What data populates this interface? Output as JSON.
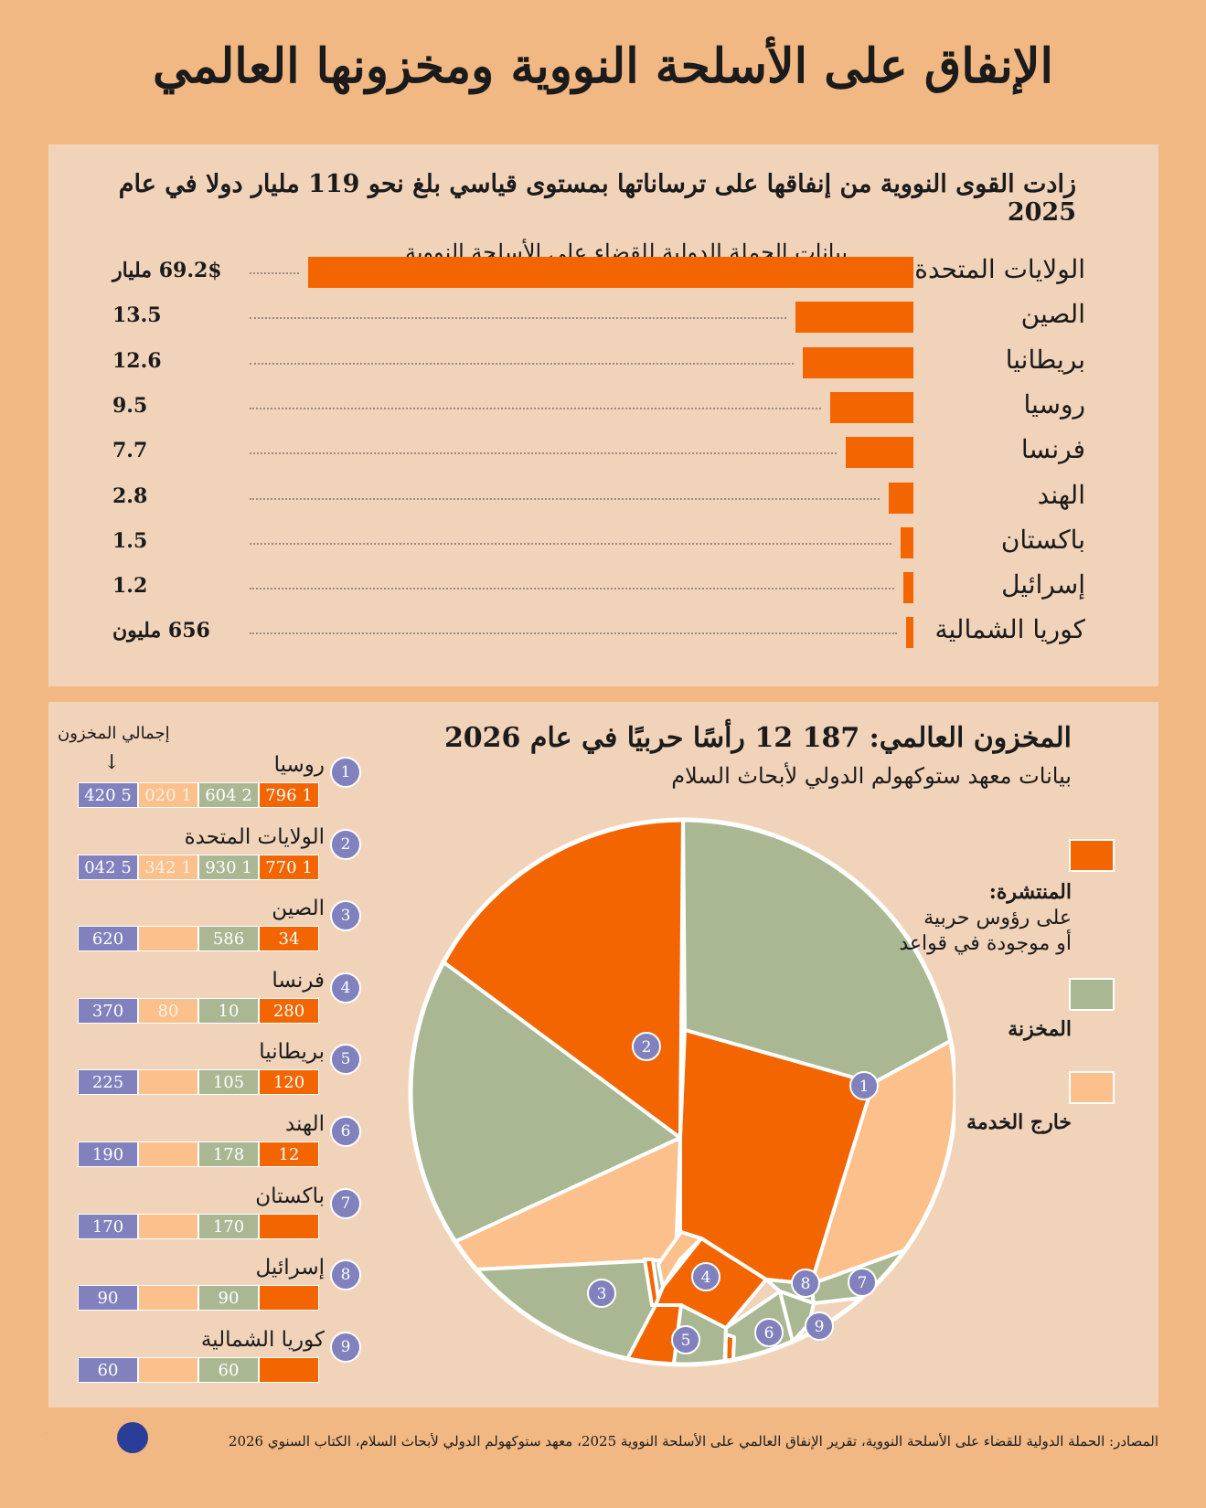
{
  "title": "الإنفاق على الأسلحة النووية ومخزونها العالمي",
  "colors": {
    "background": "#f2b883",
    "panel": "#f1d3ba",
    "deployed": "#f26500",
    "stored": "#a9b893",
    "retired": "#fcc08d",
    "total": "#8181be"
  },
  "spending": {
    "title": "زادت القوى النووية من إنفاقها على ترساناتها بمستوى قياسي بلغ نحو 119 مليار دولا في عام 2025",
    "subtitle": "بيانات الحملة الدولية للقضاء على الأسلحة النووية"
  },
  "stockpile": {
    "title": "المخزون العالمي: 187 12 رأسًا حربيًا في عام 2026",
    "subtitle": "بيانات معهد ستوكهولم الدولي لأبحاث السلام",
    "total_header": "إجمالي المخزون",
    "legend": {
      "deployed_title": "المنتشرة:",
      "deployed_line1": "على رؤوس حربية",
      "deployed_line2": "أو موجودة في قواعد",
      "stored": "المخزنة",
      "retired": "خارج الخدمة"
    }
  },
  "chart_data": [
    {
      "type": "bar",
      "orientation": "horizontal",
      "title": "زادت القوى النووية من إنفاقها على ترساناتها بمستوى قياسي بلغ نحو 119 مليار دولا في عام 2025",
      "subtitle": "بيانات الحملة الدولية للقضاء على الأسلحة النووية",
      "categories": [
        "الولايات المتحدة",
        "الصين",
        "بريطانيا",
        "روسيا",
        "فرنسا",
        "الهند",
        "باكستان",
        "إسرائيل",
        "كوريا الشمالية"
      ],
      "values": [
        69.2,
        13.5,
        12.6,
        9.5,
        7.7,
        2.8,
        1.5,
        1.2,
        0.656
      ],
      "value_labels": [
        "69.2$ مليار",
        "13.5",
        "12.6",
        "9.5",
        "7.7",
        "2.8",
        "1.5",
        "1.2",
        "656 مليون"
      ]
    },
    {
      "type": "table",
      "title": "المخزون العالمي: 187 12 رأسًا حربيًا في عام 2026",
      "subtitle": "بيانات معهد ستوكهولم الدولي لأبحاث السلام",
      "columns": [
        "total",
        "retired",
        "stored",
        "deployed"
      ],
      "rows": [
        {
          "rank": "1",
          "country": "روسيا",
          "total": "5 420",
          "retired": "1 020",
          "stored": "2 604",
          "deployed": "1 796"
        },
        {
          "rank": "2",
          "country": "الولايات المتحدة",
          "total": "5 042",
          "retired": "1 342",
          "stored": "1 930",
          "deployed": "1 770"
        },
        {
          "rank": "3",
          "country": "الصين",
          "total": "620",
          "retired": "",
          "stored": "586",
          "deployed": "34"
        },
        {
          "rank": "4",
          "country": "فرنسا",
          "total": "370",
          "retired": "80",
          "stored": "10",
          "deployed": "280"
        },
        {
          "rank": "5",
          "country": "بريطانيا",
          "total": "225",
          "retired": "",
          "stored": "105",
          "deployed": "120"
        },
        {
          "rank": "6",
          "country": "الهند",
          "total": "190",
          "retired": "",
          "stored": "178",
          "deployed": "12"
        },
        {
          "rank": "7",
          "country": "باكستان",
          "total": "170",
          "retired": "",
          "stored": "170",
          "deployed": ""
        },
        {
          "rank": "8",
          "country": "إسرائيل",
          "total": "90",
          "retired": "",
          "stored": "90",
          "deployed": ""
        },
        {
          "rank": "9",
          "country": "كوريا الشمالية",
          "total": "60",
          "retired": "",
          "stored": "60",
          "deployed": ""
        }
      ]
    }
  ],
  "footer": {
    "source": "المصادر: الحملة الدولية للقضاء على الأسلحة النووية، تقرير الإنفاق العالمي على الأسلحة النووية 2025، معهد ستوكهولم الدولي لأبحاث السلام، الكتاب السنوي 2026",
    "logo": "AFP"
  }
}
